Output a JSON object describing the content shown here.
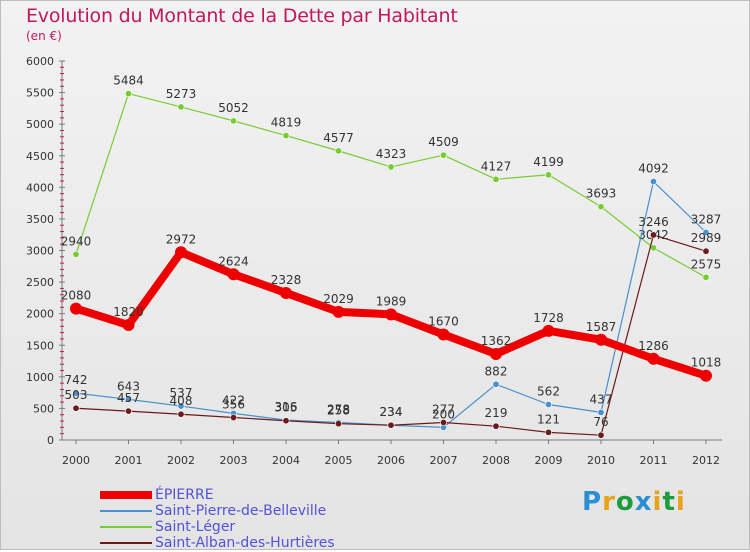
{
  "chart_data": {
    "type": "line",
    "title": "Evolution du Montant de la Dette par Habitant",
    "subtitle": "(en €)",
    "categories": [
      "2000",
      "2001",
      "2002",
      "2003",
      "2004",
      "2005",
      "2006",
      "2007",
      "2008",
      "2009",
      "2010",
      "2011",
      "2012"
    ],
    "ylim": [
      0,
      6000
    ],
    "yticks": [
      0,
      500,
      1000,
      1500,
      2000,
      2500,
      3000,
      3500,
      4000,
      4500,
      5000,
      5500,
      6000
    ],
    "grid": false,
    "legend_position": "bottom-left",
    "series": [
      {
        "name": "ÉPIERRE",
        "color": "#ee0000",
        "values": [
          2080,
          1820,
          2972,
          2624,
          2328,
          2029,
          1989,
          1670,
          1362,
          1728,
          1587,
          1286,
          1018
        ]
      },
      {
        "name": "Saint-Pierre-de-Belleville",
        "color": "#4a8fcf",
        "values": [
          742,
          643,
          537,
          422,
          316,
          278,
          234,
          200,
          882,
          562,
          437,
          4092,
          3287
        ]
      },
      {
        "name": "Saint-Léger",
        "color": "#77cc33",
        "values": [
          2940,
          5484,
          5273,
          5052,
          4819,
          4577,
          4323,
          4509,
          4127,
          4199,
          3693,
          3042,
          2575
        ]
      },
      {
        "name": "Saint-Alban-des-Hurtières",
        "color": "#6b1a1a",
        "values": [
          503,
          457,
          408,
          356,
          305,
          258,
          234,
          277,
          219,
          121,
          76,
          3246,
          2989
        ]
      }
    ]
  },
  "logo": {
    "letters": [
      "P",
      "r",
      "o",
      "x",
      "i",
      "t",
      "i"
    ],
    "colors": [
      "#2a8fd4",
      "#e8a317",
      "#1e9b3d",
      "#2a8fd4",
      "#e8a317",
      "#1e9b3d",
      "#e8a317"
    ]
  }
}
